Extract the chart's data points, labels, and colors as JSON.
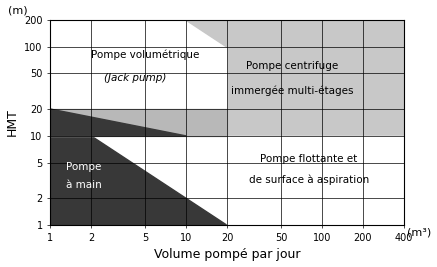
{
  "xlabel": "Volume pompé par jour",
  "ylabel": "HMT",
  "xlabel_unit": "(m³)",
  "ylabel_unit": "(m)",
  "xlim": [
    1,
    400
  ],
  "ylim": [
    1,
    200
  ],
  "xticks": [
    1,
    2,
    5,
    10,
    20,
    50,
    100,
    200,
    400
  ],
  "yticks": [
    1,
    2,
    5,
    10,
    20,
    50,
    100,
    200
  ],
  "region_dark": "#383838",
  "region_light_gray": "#c8c8c8",
  "region_mid_gray": "#b0b0b0",
  "region_band_gray": "#b8b8b8",
  "labels": {
    "pompe_main_1": "Pompe",
    "pompe_main_2": "à main",
    "pompe_vol_1": "Pompe volumétrique",
    "pompe_vol_2": "(Jack pump)",
    "pompe_cent_1": "Pompe centrifuge",
    "pompe_cent_2": "immergée multi-étages",
    "pompe_flot_1": "Pompe flottante et",
    "pompe_flot_2": "de surface à aspiration"
  },
  "label_fontsize": 7.5,
  "axis_label_fontsize": 9
}
